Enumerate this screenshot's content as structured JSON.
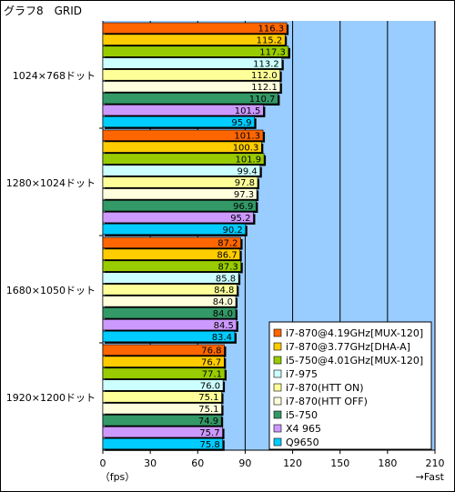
{
  "chart_data": {
    "type": "bar",
    "orientation": "horizontal",
    "title": "グラフ8　GRID",
    "xlim": [
      0,
      210
    ],
    "xticks": [
      0,
      30,
      60,
      90,
      120,
      150,
      180,
      210
    ],
    "xlabel": "（fps）",
    "xlabel_right": "→Fast",
    "categories": [
      "1024×768ドット",
      "1280×1024ドット",
      "1680×1050ドット",
      "1920×1200ドット"
    ],
    "series": [
      {
        "name": "i7-870@4.19GHz[MUX-120]",
        "color": "#ff6600",
        "values": [
          116.3,
          101.3,
          87.2,
          76.8
        ]
      },
      {
        "name": "i7-870@3.77GHz[DHA-A]",
        "color": "#ffcc00",
        "values": [
          115.2,
          100.3,
          86.7,
          76.7
        ]
      },
      {
        "name": "i5-750@4.01GHz[MUX-120]",
        "color": "#99cc00",
        "values": [
          117.3,
          101.9,
          87.3,
          77.1
        ]
      },
      {
        "name": "i7-975",
        "color": "#ccffff",
        "values": [
          113.2,
          99.4,
          85.8,
          76.0
        ]
      },
      {
        "name": "i7-870(HTT ON)",
        "color": "#ffff99",
        "values": [
          112.0,
          97.8,
          84.8,
          75.1
        ]
      },
      {
        "name": "i7-870(HTT OFF)",
        "color": "#ffffdd",
        "values": [
          112.1,
          97.3,
          84.0,
          75.1
        ]
      },
      {
        "name": "i5-750",
        "color": "#339966",
        "values": [
          110.7,
          96.9,
          84.0,
          74.9
        ]
      },
      {
        "name": "X4 965",
        "color": "#cc99ff",
        "values": [
          101.5,
          95.2,
          84.5,
          75.7
        ]
      },
      {
        "name": "Q9650",
        "color": "#00ccff",
        "values": [
          95.9,
          90.2,
          83.4,
          75.8
        ]
      }
    ],
    "plot_background": "#99ccff",
    "grid": true,
    "legend_position": "bottom-right"
  }
}
